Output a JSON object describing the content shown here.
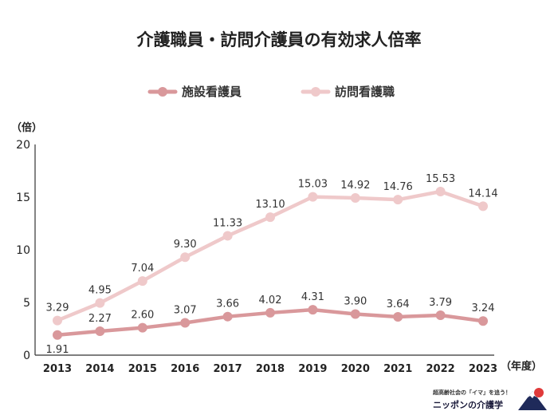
{
  "chart_data": {
    "type": "line",
    "title": "介護職員・訪問介護員の有効求人倍率",
    "ylabel": "（倍）",
    "xlabel": "（年度）",
    "categories": [
      "2013",
      "2014",
      "2015",
      "2016",
      "2017",
      "2018",
      "2019",
      "2020",
      "2021",
      "2022",
      "2023"
    ],
    "ylim": [
      0,
      20
    ],
    "yticks": [
      0,
      5,
      10,
      15,
      20
    ],
    "legend_position": "top",
    "series": [
      {
        "name": "施設看護員",
        "color": "#d9989b",
        "values": [
          1.91,
          2.27,
          2.6,
          3.07,
          3.66,
          4.02,
          4.31,
          3.9,
          3.64,
          3.79,
          3.24
        ],
        "labels": [
          "1.91",
          "2.27",
          "2.60",
          "3.07",
          "3.66",
          "4.02",
          "4.31",
          "3.90",
          "3.64",
          "3.79",
          "3.24"
        ]
      },
      {
        "name": "訪問看護職",
        "color": "#efc9ca",
        "values": [
          3.29,
          4.95,
          7.04,
          9.3,
          11.33,
          13.1,
          15.03,
          14.92,
          14.76,
          15.53,
          14.14
        ],
        "labels": [
          "3.29",
          "4.95",
          "7.04",
          "9.30",
          "11.33",
          "13.10",
          "15.03",
          "14.92",
          "14.76",
          "15.53",
          "14.14"
        ]
      }
    ]
  },
  "brand": {
    "tagline": "超高齢社会の「イマ」を追う！",
    "name": "ニッポンの介護学"
  }
}
